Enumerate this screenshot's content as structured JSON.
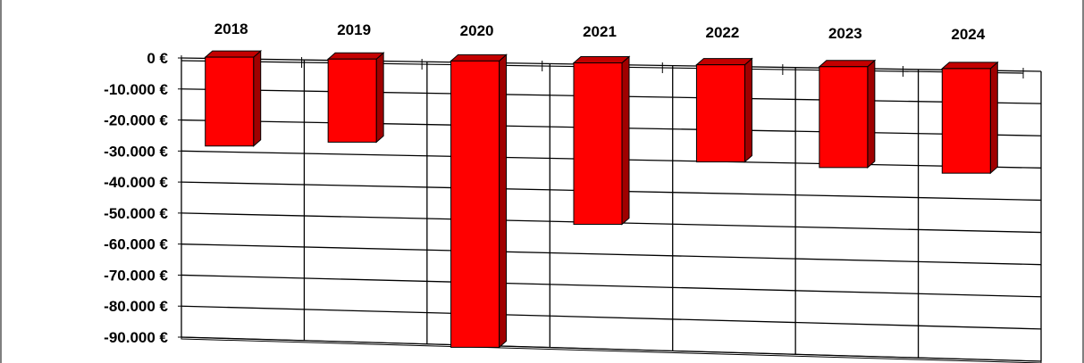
{
  "chart_data": {
    "type": "bar",
    "title": "",
    "xlabel": "",
    "ylabel": "",
    "categories": [
      "2018",
      "2019",
      "2020",
      "2021",
      "2022",
      "2023",
      "2024"
    ],
    "values": [
      -28000,
      -26000,
      -90500,
      -50500,
      -30000,
      -31000,
      -32000
    ],
    "value_axis_ticks": [
      "0 €",
      "-10.000 €",
      "-20.000 €",
      "-30.000 €",
      "-40.000 €",
      "-50.000 €",
      "-60.000 €",
      "-70.000 €",
      "-80.000 €",
      "-90.000 €"
    ],
    "ylim": [
      -90000,
      0
    ],
    "category_axis_position": "top",
    "grid": true,
    "legend": "none",
    "three_d": true,
    "colors": {
      "bar_front": "#ff0000",
      "bar_side": "#a00000",
      "bar_top": "#c40000",
      "grid": "#000000"
    }
  }
}
